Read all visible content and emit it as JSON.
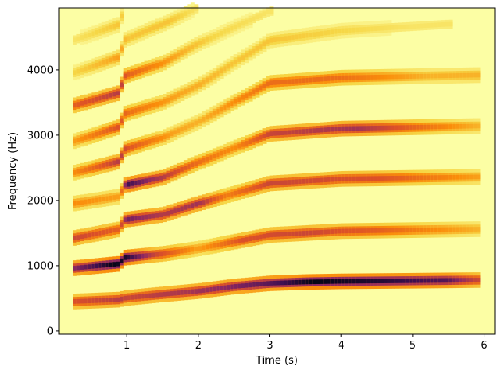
{
  "chart_data": {
    "type": "heatmap",
    "title": "",
    "xlabel": "Time (s)",
    "ylabel": "Frequency (Hz)",
    "xlim": [
      0.05,
      6.15
    ],
    "ylim": [
      -50,
      4950
    ],
    "x_ticks": [
      1,
      2,
      3,
      4,
      5,
      6
    ],
    "y_ticks": [
      0,
      1000,
      2000,
      3000,
      4000
    ],
    "x_tick_labels": [
      "1",
      "2",
      "3",
      "4",
      "5",
      "6"
    ],
    "y_tick_labels": [
      "0",
      "1000",
      "2000",
      "3000",
      "4000"
    ],
    "colormap": "inferno_r",
    "background_color": "#fcfea4",
    "grid": false,
    "colorbar": false,
    "harmonic_tracks": [
      {
        "name": "h1",
        "points": [
          [
            0.25,
            450
          ],
          [
            0.9,
            480
          ],
          [
            0.95,
            500
          ],
          [
            1.5,
            560
          ],
          [
            2.0,
            610
          ],
          [
            2.5,
            680
          ],
          [
            3.0,
            730
          ],
          [
            3.5,
            750
          ],
          [
            4.0,
            760
          ],
          [
            5.0,
            770
          ],
          [
            5.9,
            780
          ]
        ],
        "intensity": [
          [
            0.25,
            0.55
          ],
          [
            0.9,
            0.65
          ],
          [
            1.0,
            0.6
          ],
          [
            2.0,
            0.7
          ],
          [
            3.0,
            0.85
          ],
          [
            3.6,
            1.0
          ],
          [
            4.5,
            0.95
          ],
          [
            5.5,
            0.85
          ],
          [
            5.9,
            0.6
          ]
        ]
      },
      {
        "name": "h2",
        "points": [
          [
            0.25,
            960
          ],
          [
            0.9,
            1030
          ],
          [
            0.95,
            1120
          ],
          [
            1.5,
            1180
          ],
          [
            2.0,
            1260
          ],
          [
            3.0,
            1470
          ],
          [
            4.0,
            1530
          ],
          [
            5.9,
            1560
          ]
        ],
        "intensity": [
          [
            0.25,
            0.75
          ],
          [
            0.8,
            1.0
          ],
          [
            1.0,
            0.95
          ],
          [
            1.4,
            0.6
          ],
          [
            2.0,
            0.3
          ],
          [
            2.6,
            0.55
          ],
          [
            3.5,
            0.6
          ],
          [
            4.5,
            0.5
          ],
          [
            5.9,
            0.25
          ]
        ]
      },
      {
        "name": "h3",
        "points": [
          [
            0.25,
            1420
          ],
          [
            0.9,
            1560
          ],
          [
            0.95,
            1700
          ],
          [
            1.5,
            1780
          ],
          [
            2.0,
            1950
          ],
          [
            3.0,
            2260
          ],
          [
            4.0,
            2330
          ],
          [
            5.9,
            2360
          ]
        ],
        "intensity": [
          [
            0.25,
            0.6
          ],
          [
            0.9,
            0.5
          ],
          [
            1.0,
            0.8
          ],
          [
            1.5,
            0.65
          ],
          [
            2.0,
            0.7
          ],
          [
            2.4,
            0.4
          ],
          [
            3.0,
            0.6
          ],
          [
            4.5,
            0.55
          ],
          [
            5.9,
            0.3
          ]
        ]
      },
      {
        "name": "h4",
        "points": [
          [
            0.25,
            1950
          ],
          [
            0.9,
            2060
          ],
          [
            0.95,
            2230
          ],
          [
            1.5,
            2350
          ],
          [
            2.0,
            2580
          ],
          [
            3.0,
            3020
          ],
          [
            4.0,
            3100
          ],
          [
            5.9,
            3140
          ]
        ],
        "intensity": [
          [
            0.25,
            0.35
          ],
          [
            0.9,
            0.3
          ],
          [
            1.0,
            0.9
          ],
          [
            1.6,
            0.6
          ],
          [
            2.0,
            0.45
          ],
          [
            2.5,
            0.35
          ],
          [
            3.0,
            0.6
          ],
          [
            4.2,
            0.7
          ],
          [
            5.9,
            0.25
          ]
        ]
      },
      {
        "name": "h5",
        "points": [
          [
            0.25,
            2420
          ],
          [
            0.9,
            2600
          ],
          [
            0.95,
            2780
          ],
          [
            1.5,
            2960
          ],
          [
            2.0,
            3200
          ],
          [
            3.0,
            3800
          ],
          [
            4.0,
            3880
          ],
          [
            5.9,
            3920
          ]
        ],
        "intensity": [
          [
            0.25,
            0.35
          ],
          [
            0.9,
            0.65
          ],
          [
            1.0,
            0.55
          ],
          [
            1.6,
            0.3
          ],
          [
            2.0,
            0.25
          ],
          [
            3.0,
            0.45
          ],
          [
            4.0,
            0.45
          ],
          [
            5.2,
            0.25
          ]
        ]
      },
      {
        "name": "h6",
        "points": [
          [
            0.25,
            2900
          ],
          [
            0.9,
            3130
          ],
          [
            0.95,
            3320
          ],
          [
            1.5,
            3500
          ],
          [
            2.0,
            3760
          ],
          [
            3.0,
            4450
          ],
          [
            4.0,
            4600
          ],
          [
            5.5,
            4700
          ]
        ],
        "intensity": [
          [
            0.25,
            0.3
          ],
          [
            0.9,
            0.55
          ],
          [
            1.0,
            0.45
          ],
          [
            1.6,
            0.3
          ],
          [
            2.5,
            0.2
          ],
          [
            3.0,
            0.2
          ],
          [
            4.0,
            0.15
          ],
          [
            5.0,
            0.1
          ]
        ]
      },
      {
        "name": "h7",
        "points": [
          [
            0.25,
            3450
          ],
          [
            0.9,
            3650
          ],
          [
            0.95,
            3900
          ],
          [
            1.5,
            4100
          ],
          [
            2.0,
            4400
          ],
          [
            3.0,
            4900
          ]
        ],
        "intensity": [
          [
            0.25,
            0.5
          ],
          [
            0.9,
            0.65
          ],
          [
            1.0,
            0.5
          ],
          [
            1.6,
            0.3
          ],
          [
            2.2,
            0.15
          ],
          [
            3.0,
            0.1
          ]
        ]
      },
      {
        "name": "h8",
        "points": [
          [
            0.25,
            3950
          ],
          [
            0.9,
            4200
          ],
          [
            0.95,
            4450
          ],
          [
            1.5,
            4700
          ],
          [
            2.0,
            4950
          ]
        ],
        "intensity": [
          [
            0.25,
            0.15
          ],
          [
            0.9,
            0.3
          ],
          [
            1.0,
            0.2
          ],
          [
            1.6,
            0.2
          ],
          [
            2.0,
            0.1
          ]
        ]
      },
      {
        "name": "h9",
        "points": [
          [
            0.25,
            4450
          ],
          [
            0.9,
            4700
          ],
          [
            0.95,
            4950
          ]
        ],
        "intensity": [
          [
            0.25,
            0.1
          ],
          [
            0.9,
            0.2
          ],
          [
            1.0,
            0.1
          ]
        ]
      }
    ]
  }
}
